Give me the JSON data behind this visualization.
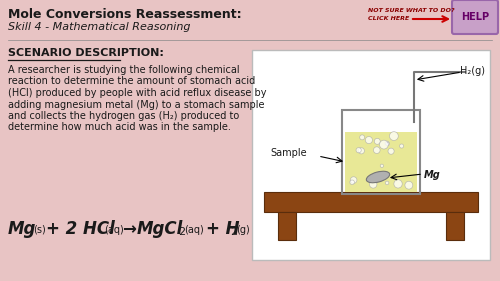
{
  "background_color": "#e8c4c4",
  "title_bold": "Mole Conversions Reassessment:",
  "title_italic": "Skill 4 - Mathematical Reasoning",
  "section_header": "SCENARIO DESCRIPTION:",
  "body_lines": [
    "A researcher is studying the following chemical",
    "reaction to determine the amount of stomach acid",
    "(HCl) produced by people with acid reflux disease by",
    "adding magnesium metal (Mg) to a stomach sample",
    "and collects the hydrogen gas (H₂) produced to",
    "determine how much acid was in the sample."
  ],
  "help_box_color": "#c8a0c8",
  "help_box_border": "#9966aa",
  "arrow_color": "#cc0000",
  "bench_color": "#8B4513",
  "liquid_color": "#e8e896",
  "beaker_border": "#888888",
  "equation_color": "#1a1a1a",
  "text_color": "#1a1a1a",
  "font_size_title": 9,
  "font_size_subtitle": 8,
  "font_size_body": 7
}
